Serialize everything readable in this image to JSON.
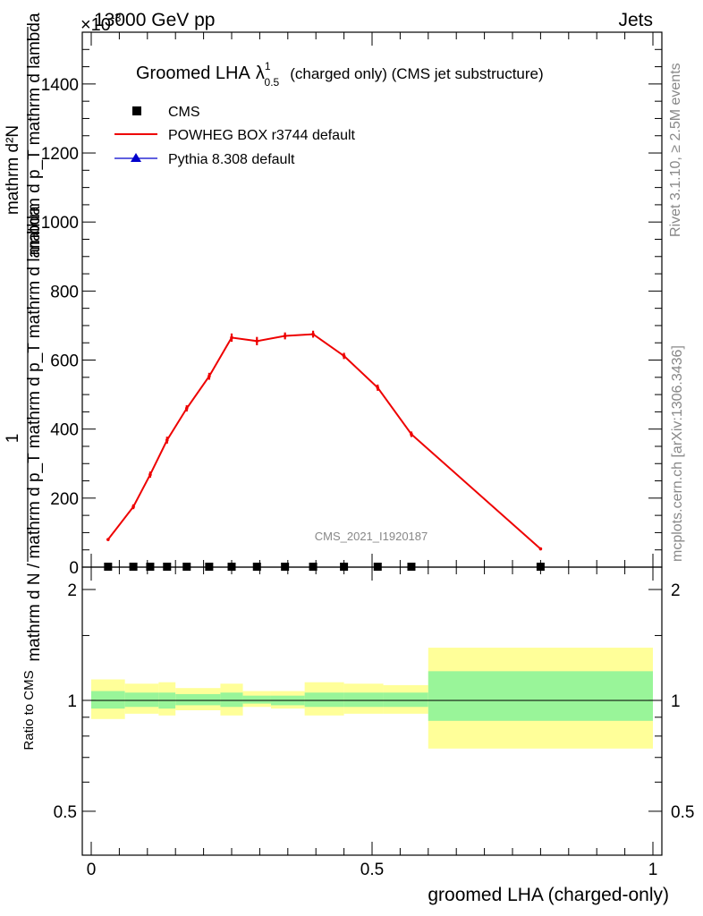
{
  "header": {
    "left_label": "13000 GeV pp",
    "right_label": "Jets",
    "exponent_label": "×10",
    "exponent_power": "-3"
  },
  "side_labels": {
    "rivet": "Rivet 3.1.10, ≥ 2.5M events",
    "mcplots": "mcplots.cern.ch [arXiv:1306.3436]"
  },
  "chart_data": [
    {
      "type": "line",
      "title": "Groomed LHA",
      "title_symbol": "λ",
      "title_sup": "1",
      "title_sub": "0.5",
      "title_suffix": "(charged only) (CMS jet substructure)",
      "watermark": "CMS_2021_I1920187",
      "ylabel_numerator": "1",
      "ylabel_denominator": "mathrm d N / mathrm d p_T mathrm d p_T mathrm d lambda",
      "ylabel_numerator_line": "mathrm d²N",
      "ylabel_denominator_line": "mathrm d p_T mathrm d lambda",
      "xlim": [
        0,
        1
      ],
      "ylim": [
        0,
        1550
      ],
      "yticks": [
        0,
        200,
        400,
        600,
        800,
        1000,
        1200,
        1400
      ],
      "ytick_labels": [
        "0",
        "200",
        "400",
        "600",
        "800",
        "1000",
        "1200",
        "1400"
      ],
      "legend_position": "top-left",
      "series": [
        {
          "name": "CMS",
          "color": "#000000",
          "marker": "square",
          "x": [
            0.03,
            0.075,
            0.105,
            0.135,
            0.17,
            0.21,
            0.25,
            0.295,
            0.345,
            0.395,
            0.45,
            0.51,
            0.57,
            0.8
          ],
          "y": [
            0,
            0,
            0,
            0,
            0,
            0,
            0,
            0,
            0,
            0,
            0,
            0,
            0,
            0
          ]
        },
        {
          "name": "POWHEG BOX r3744 default",
          "color": "#ee0000",
          "marker": "none",
          "x": [
            0.03,
            0.075,
            0.105,
            0.135,
            0.17,
            0.21,
            0.25,
            0.295,
            0.345,
            0.395,
            0.45,
            0.51,
            0.57,
            0.8
          ],
          "y": [
            80,
            175,
            268,
            368,
            460,
            553,
            665,
            655,
            670,
            675,
            612,
            520,
            385,
            53
          ],
          "err": [
            4,
            7,
            9,
            10,
            9,
            10,
            12,
            12,
            10,
            10,
            9,
            9,
            8,
            4
          ]
        },
        {
          "name": "Pythia 8.308 default",
          "color": "#0000cc",
          "marker": "triangle",
          "x": [],
          "y": []
        }
      ]
    },
    {
      "type": "area",
      "ylabel": "Ratio to CMS",
      "xlabel": "groomed LHA (charged-only)",
      "xlim": [
        0,
        1
      ],
      "ylim": [
        0.38,
        2.3
      ],
      "yscale": "log",
      "yticks": [
        0.5,
        1,
        2
      ],
      "ytick_labels": [
        "0.5",
        "1",
        "2"
      ],
      "xticks": [
        0,
        0.5,
        1
      ],
      "xtick_labels": [
        "0",
        "0.5",
        "1"
      ],
      "band_colors": {
        "inner": "#99f599",
        "outer": "#ffff99",
        "reference": "#000000"
      },
      "bins": [
        {
          "x0": 0.0,
          "x1": 0.06,
          "inner": [
            0.95,
            1.06
          ],
          "outer": [
            0.89,
            1.14
          ]
        },
        {
          "x0": 0.06,
          "x1": 0.12,
          "inner": [
            0.96,
            1.05
          ],
          "outer": [
            0.92,
            1.11
          ]
        },
        {
          "x0": 0.12,
          "x1": 0.15,
          "inner": [
            0.95,
            1.05
          ],
          "outer": [
            0.91,
            1.12
          ]
        },
        {
          "x0": 0.15,
          "x1": 0.23,
          "inner": [
            0.97,
            1.04
          ],
          "outer": [
            0.94,
            1.08
          ]
        },
        {
          "x0": 0.23,
          "x1": 0.27,
          "inner": [
            0.96,
            1.05
          ],
          "outer": [
            0.91,
            1.11
          ]
        },
        {
          "x0": 0.27,
          "x1": 0.32,
          "inner": [
            0.98,
            1.03
          ],
          "outer": [
            0.96,
            1.06
          ]
        },
        {
          "x0": 0.32,
          "x1": 0.38,
          "inner": [
            0.97,
            1.03
          ],
          "outer": [
            0.95,
            1.06
          ]
        },
        {
          "x0": 0.38,
          "x1": 0.45,
          "inner": [
            0.96,
            1.05
          ],
          "outer": [
            0.91,
            1.12
          ]
        },
        {
          "x0": 0.45,
          "x1": 0.52,
          "inner": [
            0.96,
            1.05
          ],
          "outer": [
            0.92,
            1.11
          ]
        },
        {
          "x0": 0.52,
          "x1": 0.6,
          "inner": [
            0.96,
            1.05
          ],
          "outer": [
            0.92,
            1.1
          ]
        },
        {
          "x0": 0.6,
          "x1": 1.0,
          "inner": [
            0.88,
            1.2
          ],
          "outer": [
            0.74,
            1.39
          ]
        }
      ]
    }
  ]
}
